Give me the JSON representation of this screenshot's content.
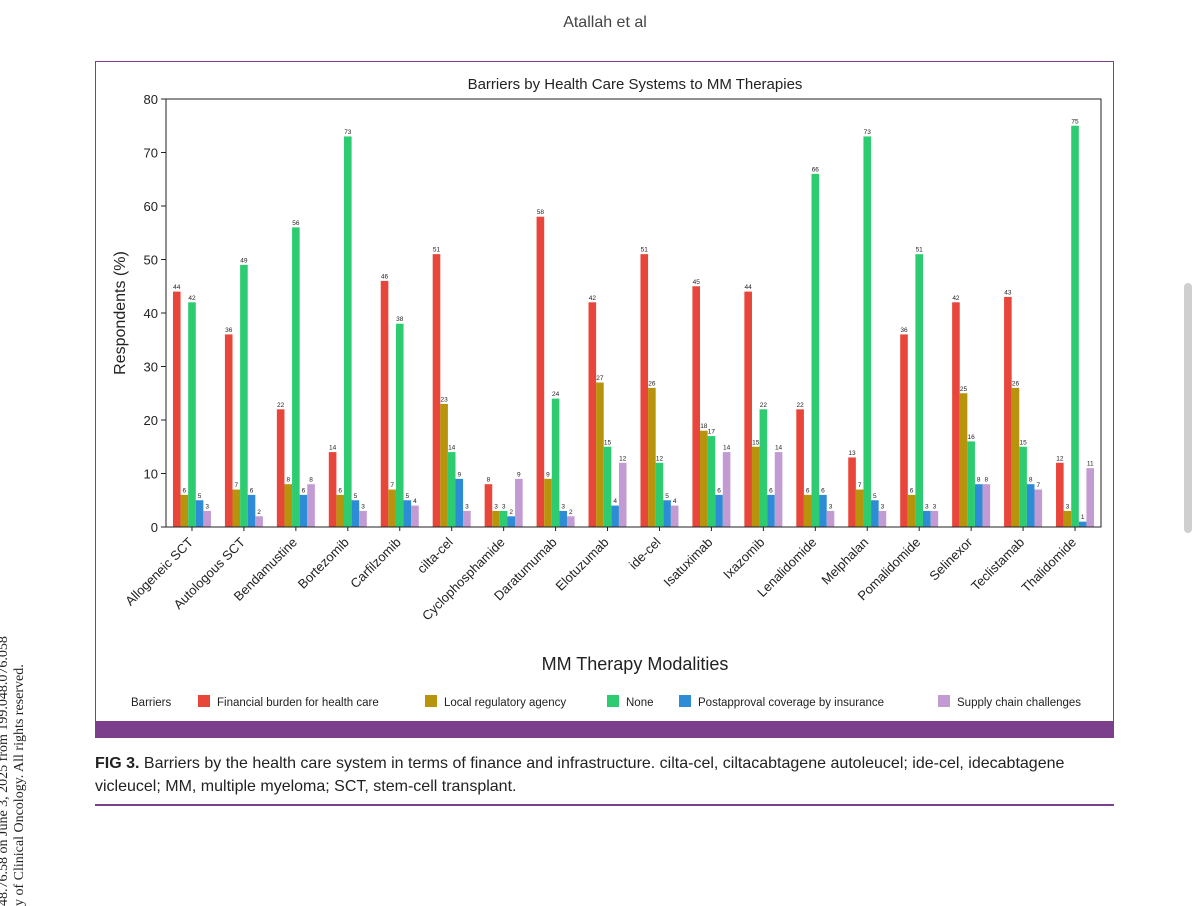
{
  "page": {
    "running_head": "Atallah et al",
    "side_text_line1": "48.76.58 on June 3, 2025 from 199.048.076.058",
    "side_text_line2": "y of Clinical Oncology. All rights reserved.",
    "caption_label": "FIG 3.",
    "caption_text": " Barriers by the health care system in terms of finance and infrastructure. cilta-cel, ciltacabtagene autoleucel; ide-cel, idecabtagene vicleucel; MM, multiple myeloma; SCT, stem-cell transplant.",
    "accent_color": "#7b3f8c"
  },
  "chart_data": {
    "type": "bar",
    "title": "Barriers by Health Care Systems to MM Therapies",
    "xlabel": "MM Therapy Modalities",
    "ylabel": "Respondents (%)",
    "ylim": [
      0,
      80
    ],
    "yticks": [
      0,
      10,
      20,
      30,
      40,
      50,
      60,
      70,
      80
    ],
    "legend_title": "Barriers",
    "legend_position": "bottom",
    "categories": [
      "Allogeneic SCT",
      "Autologous SCT",
      "Bendamustine",
      "Bortezomib",
      "Carfilzomib",
      "cilta-cel",
      "Cyclophosphamide",
      "Daratumumab",
      "Elotuzumab",
      "ide-cel",
      "Isatuximab",
      "Ixazomib",
      "Lenalidomide",
      "Melphalan",
      "Pomalidomide",
      "Selinexor",
      "Teclistamab",
      "Thalidomide"
    ],
    "series": [
      {
        "name": "Financial burden for health care",
        "color": "#e8463a",
        "values": [
          44,
          36,
          22,
          14,
          46,
          51,
          8,
          58,
          42,
          51,
          45,
          44,
          22,
          13,
          36,
          42,
          43,
          12
        ]
      },
      {
        "name": "Local regulatory agency",
        "color": "#b8930c",
        "values": [
          6,
          7,
          8,
          6,
          7,
          23,
          3,
          9,
          27,
          26,
          18,
          15,
          6,
          7,
          6,
          25,
          26,
          3
        ]
      },
      {
        "name": "None",
        "color": "#2ecc71",
        "values": [
          42,
          49,
          56,
          73,
          38,
          14,
          3,
          24,
          15,
          12,
          17,
          22,
          66,
          73,
          51,
          16,
          15,
          75
        ]
      },
      {
        "name": "Postapproval coverage by insurance",
        "color": "#2e8bd6",
        "values": [
          5,
          6,
          6,
          5,
          5,
          9,
          2,
          3,
          4,
          5,
          6,
          6,
          6,
          5,
          3,
          8,
          8,
          1
        ]
      },
      {
        "name": "Supply chain challenges",
        "color": "#c39bd3",
        "values": [
          3,
          2,
          8,
          3,
          4,
          3,
          9,
          2,
          12,
          4,
          14,
          14,
          3,
          3,
          3,
          8,
          7,
          11
        ]
      }
    ]
  }
}
